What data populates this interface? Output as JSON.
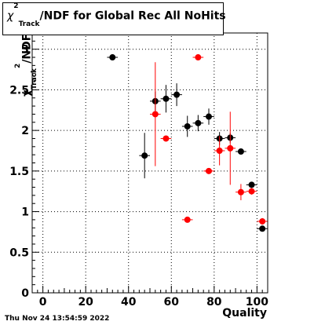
{
  "title": {
    "symbol": "χ",
    "superscript": "2",
    "subscript": "Track",
    "rest": "/NDF for Global Rec All NoHits"
  },
  "footer": {
    "timestamp": "Thu Nov 24 13:54:59 2022"
  },
  "axes": {
    "xlabel": "Quality",
    "ylabel_symbol": "χ",
    "ylabel_sup": "2",
    "ylabel_sub": "Track",
    "ylabel_rest": "/NDF"
  },
  "chart_data": {
    "type": "scatter",
    "xlabel": "Quality",
    "ylabel": "χ2Track/NDF",
    "xlim": [
      -5,
      105
    ],
    "ylim": [
      0,
      3.2
    ],
    "xticks": [
      0,
      20,
      40,
      60,
      80,
      100
    ],
    "yticks": [
      0,
      0.5,
      1,
      1.5,
      2,
      2.5,
      3
    ],
    "grid": true,
    "series": [
      {
        "color": "#000000",
        "points": [
          {
            "x": 32.5,
            "y": 2.9,
            "xerr": 2.5,
            "yerr": 0.02
          },
          {
            "x": 47.5,
            "y": 1.69,
            "xerr": 2.5,
            "yerr": 0.28
          },
          {
            "x": 52.5,
            "y": 2.36,
            "xerr": 2.5,
            "yerr": 0.12
          },
          {
            "x": 57.5,
            "y": 2.39,
            "xerr": 2.5,
            "yerr": 0.17
          },
          {
            "x": 62.5,
            "y": 2.44,
            "xerr": 2.5,
            "yerr": 0.14
          },
          {
            "x": 67.5,
            "y": 2.05,
            "xerr": 2.5,
            "yerr": 0.13
          },
          {
            "x": 72.5,
            "y": 2.09,
            "xerr": 2.5,
            "yerr": 0.1
          },
          {
            "x": 77.5,
            "y": 2.17,
            "xerr": 2.5,
            "yerr": 0.1
          },
          {
            "x": 82.5,
            "y": 1.9,
            "xerr": 2.5,
            "yerr": 0.08
          },
          {
            "x": 87.5,
            "y": 1.91,
            "xerr": 2.5,
            "yerr": 0.06
          },
          {
            "x": 92.5,
            "y": 1.74,
            "xerr": 2.5,
            "yerr": 0.03
          },
          {
            "x": 97.5,
            "y": 1.33,
            "xerr": 2.5,
            "yerr": 0.02
          },
          {
            "x": 102.5,
            "y": 0.79,
            "xerr": 2.5,
            "yerr": 0.02
          }
        ]
      },
      {
        "color": "#ff0000",
        "points": [
          {
            "x": 52.5,
            "y": 2.2,
            "xerr": 2.5,
            "yerr": 0.64
          },
          {
            "x": 57.5,
            "y": 1.9,
            "xerr": 2.5,
            "yerr": 0.03
          },
          {
            "x": 67.5,
            "y": 0.9,
            "xerr": 2.5,
            "yerr": 0.02
          },
          {
            "x": 72.5,
            "y": 2.9,
            "xerr": 2.5,
            "yerr": 0.02
          },
          {
            "x": 77.5,
            "y": 1.5,
            "xerr": 2.5,
            "yerr": 0.03
          },
          {
            "x": 82.5,
            "y": 1.75,
            "xerr": 2.5,
            "yerr": 0.18
          },
          {
            "x": 87.5,
            "y": 1.78,
            "xerr": 2.5,
            "yerr": 0.45
          },
          {
            "x": 92.5,
            "y": 1.24,
            "xerr": 2.5,
            "yerr": 0.1
          },
          {
            "x": 97.5,
            "y": 1.25,
            "xerr": 2.5,
            "yerr": 0.04
          },
          {
            "x": 102.5,
            "y": 0.88,
            "xerr": 2.5,
            "yerr": 0.04
          }
        ]
      }
    ]
  }
}
